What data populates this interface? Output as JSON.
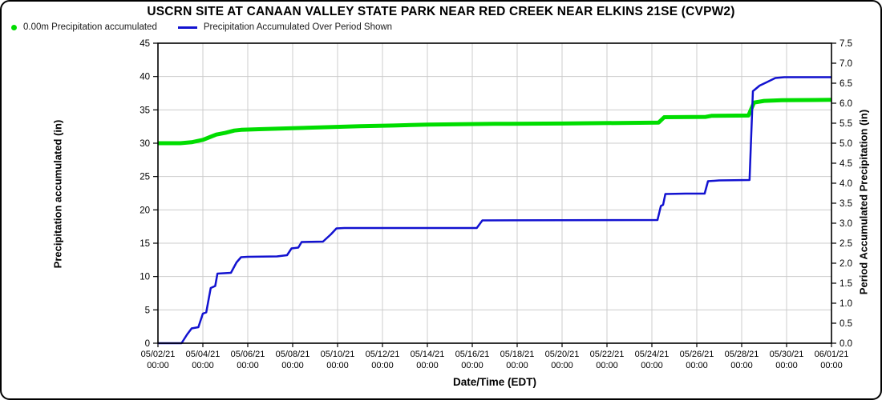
{
  "title": "USCRN SITE AT CANAAN VALLEY STATE PARK NEAR RED CREEK NEAR ELKINS 21SE (CVPW2)",
  "legend": {
    "items": [
      {
        "label": "0.00m Precipitation accumulated",
        "marker": "dot",
        "color": "#00dd00"
      },
      {
        "label": "Precipitation Accumulated Over Period Shown",
        "marker": "line",
        "color": "#1212d0"
      }
    ]
  },
  "colors": {
    "green_series": "#00dd00",
    "blue_series": "#1212d0",
    "gridline": "#cccccc",
    "spine": "#000000",
    "background": "#ffffff"
  },
  "chart_data": {
    "type": "line",
    "title": "USCRN SITE AT CANAAN VALLEY STATE PARK NEAR RED CREEK NEAR ELKINS 21SE (CVPW2)",
    "xlabel": "Date/Time (EDT)",
    "ylabel_left": "Precipitation accumulated (in)",
    "ylabel_right": "Period Accumulated Precipitation (in)",
    "grid": true,
    "legend_position": "top-left",
    "x_axis": {
      "min_days": 0,
      "max_days": 30,
      "tick_step_days": 2,
      "ticklabels": [
        "05/02/21",
        "05/04/21",
        "05/06/21",
        "05/08/21",
        "05/10/21",
        "05/12/21",
        "05/14/21",
        "05/16/21",
        "05/18/21",
        "05/20/21",
        "05/22/21",
        "05/24/21",
        "05/26/21",
        "05/28/21",
        "05/30/21",
        "06/01/21"
      ],
      "ticklabel_line2": "00:00"
    },
    "y_axis_left": {
      "min": 0,
      "max": 45,
      "step": 5,
      "decimals": 0
    },
    "y_axis_right": {
      "min": 0,
      "max": 7.5,
      "step": 0.5,
      "decimals": 1
    },
    "series": [
      {
        "name": "0.00m Precipitation accumulated",
        "axis": "left",
        "color": "#00dd00",
        "width": 5,
        "points": [
          [
            0,
            30.0
          ],
          [
            1.0,
            30.0
          ],
          [
            1.5,
            30.15
          ],
          [
            2.0,
            30.5
          ],
          [
            2.3,
            30.9
          ],
          [
            2.6,
            31.3
          ],
          [
            3.0,
            31.55
          ],
          [
            3.4,
            31.9
          ],
          [
            3.7,
            32.0
          ],
          [
            4.5,
            32.1
          ],
          [
            6.0,
            32.25
          ],
          [
            7.5,
            32.4
          ],
          [
            9.0,
            32.55
          ],
          [
            10.5,
            32.65
          ],
          [
            12.0,
            32.8
          ],
          [
            13.5,
            32.85
          ],
          [
            15.0,
            32.9
          ],
          [
            18.0,
            32.95
          ],
          [
            21.0,
            33.05
          ],
          [
            22.3,
            33.1
          ],
          [
            22.55,
            33.9
          ],
          [
            24.4,
            33.95
          ],
          [
            24.65,
            34.1
          ],
          [
            26.3,
            34.15
          ],
          [
            26.55,
            36.1
          ],
          [
            27.0,
            36.35
          ],
          [
            27.8,
            36.45
          ],
          [
            30,
            36.5
          ]
        ]
      },
      {
        "name": "Precipitation Accumulated Over Period Shown",
        "axis": "right",
        "color": "#1212d0",
        "width": 2.5,
        "points": [
          [
            0,
            0.0
          ],
          [
            1.05,
            0.0
          ],
          [
            1.3,
            0.22
          ],
          [
            1.5,
            0.37
          ],
          [
            1.8,
            0.4
          ],
          [
            2.0,
            0.74
          ],
          [
            2.15,
            0.77
          ],
          [
            2.35,
            1.38
          ],
          [
            2.55,
            1.43
          ],
          [
            2.65,
            1.74
          ],
          [
            3.25,
            1.76
          ],
          [
            3.5,
            2.02
          ],
          [
            3.7,
            2.15
          ],
          [
            4.0,
            2.16
          ],
          [
            5.3,
            2.17
          ],
          [
            5.75,
            2.2
          ],
          [
            5.95,
            2.37
          ],
          [
            6.25,
            2.39
          ],
          [
            6.4,
            2.53
          ],
          [
            7.35,
            2.54
          ],
          [
            7.7,
            2.72
          ],
          [
            7.95,
            2.87
          ],
          [
            8.3,
            2.88
          ],
          [
            14.2,
            2.88
          ],
          [
            14.45,
            3.07
          ],
          [
            22.25,
            3.08
          ],
          [
            22.4,
            3.43
          ],
          [
            22.5,
            3.46
          ],
          [
            22.6,
            3.73
          ],
          [
            23.5,
            3.74
          ],
          [
            24.35,
            3.74
          ],
          [
            24.5,
            4.05
          ],
          [
            25.0,
            4.07
          ],
          [
            26.35,
            4.08
          ],
          [
            26.5,
            6.3
          ],
          [
            26.8,
            6.44
          ],
          [
            27.1,
            6.52
          ],
          [
            27.5,
            6.63
          ],
          [
            27.9,
            6.65
          ],
          [
            30,
            6.65
          ]
        ]
      }
    ]
  }
}
